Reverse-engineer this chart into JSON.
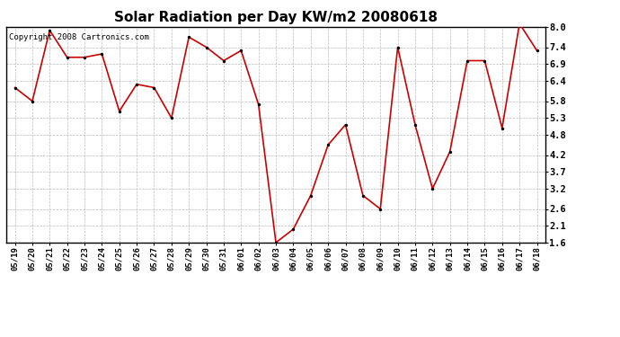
{
  "title": "Solar Radiation per Day KW/m2 20080618",
  "copyright": "Copyright 2008 Cartronics.com",
  "dates": [
    "05/19",
    "05/20",
    "05/21",
    "05/22",
    "05/23",
    "05/24",
    "05/25",
    "05/26",
    "05/27",
    "05/28",
    "05/29",
    "05/30",
    "05/31",
    "06/01",
    "06/02",
    "06/03",
    "06/04",
    "06/05",
    "06/06",
    "06/07",
    "06/08",
    "06/09",
    "06/10",
    "06/11",
    "06/12",
    "06/13",
    "06/14",
    "06/15",
    "06/16",
    "06/17",
    "06/18"
  ],
  "values": [
    6.2,
    5.8,
    7.9,
    7.1,
    7.1,
    7.2,
    5.5,
    6.3,
    6.2,
    5.3,
    7.7,
    7.4,
    7.0,
    7.3,
    5.7,
    1.6,
    2.0,
    3.0,
    4.5,
    5.1,
    3.0,
    2.6,
    7.4,
    5.1,
    3.2,
    4.3,
    7.0,
    7.0,
    5.0,
    8.1,
    7.3
  ],
  "line_color": "#cc0000",
  "marker_color": "#000000",
  "bg_color": "#ffffff",
  "plot_bg_color": "#ffffff",
  "grid_color": "#bbbbbb",
  "ylim": [
    1.6,
    8.0
  ],
  "yticks": [
    1.6,
    2.1,
    2.6,
    3.2,
    3.7,
    4.2,
    4.8,
    5.3,
    5.8,
    6.4,
    6.9,
    7.4,
    8.0
  ],
  "title_fontsize": 11,
  "copyright_fontsize": 6.5
}
